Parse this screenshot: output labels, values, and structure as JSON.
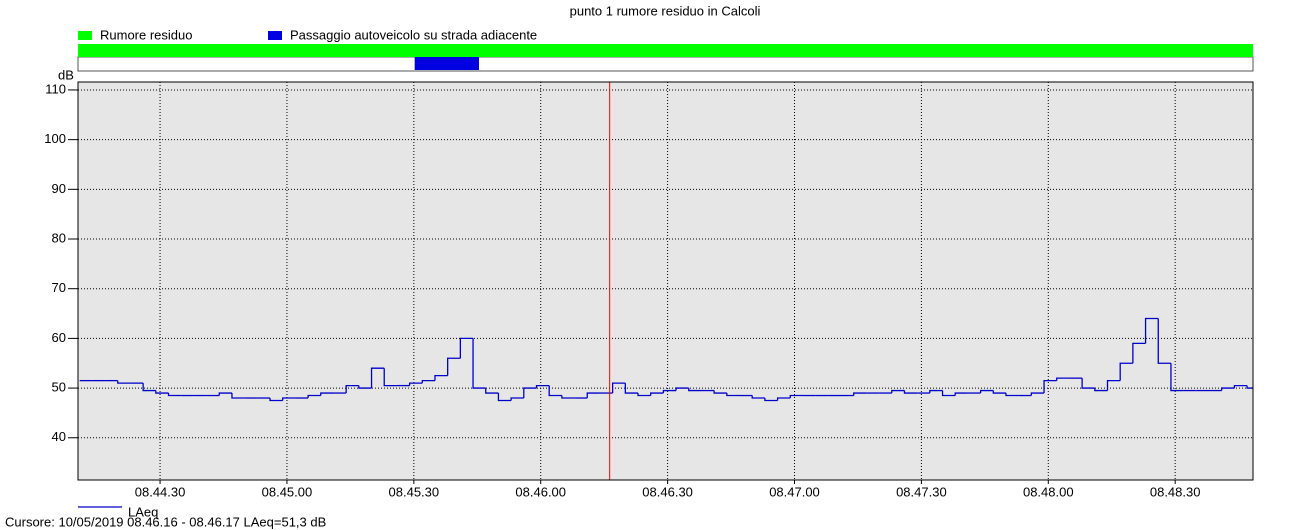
{
  "chart_data": {
    "type": "line",
    "title": "punto 1 rumore residuo in Calcoli",
    "y_label": "dB",
    "events": [
      {
        "name": "Rumore residuo",
        "color": "#00ff00",
        "start": 31450.6,
        "end": 31728.4
      },
      {
        "name": "Passaggio autoveicolo su strada adiacente",
        "color": "#0000e0",
        "start": 31530.2,
        "end": 31545.4
      }
    ],
    "x": [
      31451,
      31454,
      31457,
      31460,
      31463,
      31466,
      31469,
      31472,
      31475,
      31478,
      31481,
      31484,
      31487,
      31490,
      31493,
      31496,
      31499,
      31502,
      31505,
      31508,
      31511,
      31514,
      31517,
      31520,
      31523,
      31526,
      31529,
      31532,
      31535,
      31538,
      31541,
      31544,
      31547,
      31550,
      31553,
      31556,
      31559,
      31562,
      31565,
      31568,
      31571,
      31574,
      31577,
      31580,
      31583,
      31586,
      31589,
      31592,
      31595,
      31598,
      31601,
      31604,
      31607,
      31610,
      31613,
      31616,
      31619,
      31622,
      31625,
      31628,
      31631,
      31634,
      31637,
      31640,
      31643,
      31646,
      31649,
      31652,
      31655,
      31658,
      31661,
      31664,
      31667,
      31670,
      31673,
      31676,
      31679,
      31682,
      31685,
      31688,
      31691,
      31694,
      31697,
      31700,
      31703,
      31706,
      31709,
      31712,
      31715,
      31718,
      31721,
      31724,
      31727
    ],
    "series": [
      {
        "name": "LAeq",
        "color": "#0000cc",
        "values": [
          51.5,
          51.5,
          51.5,
          51,
          51,
          49.5,
          49,
          48.5,
          48.5,
          48.5,
          48.5,
          49,
          48,
          48,
          48,
          47.5,
          48,
          48,
          48.5,
          49,
          49,
          50.5,
          50,
          54,
          50.5,
          50.5,
          51,
          51.5,
          52.5,
          56,
          60,
          50,
          49,
          47.5,
          48,
          50,
          50.5,
          48.5,
          48,
          48,
          49,
          49,
          51,
          49,
          48.5,
          49,
          49.5,
          50,
          49.5,
          49.5,
          49,
          48.5,
          48.5,
          48,
          47.5,
          48,
          48.5,
          48.5,
          48.5,
          48.5,
          48.5,
          49,
          49,
          49,
          49.5,
          49,
          49,
          49.5,
          48.5,
          49,
          49,
          49.5,
          49,
          48.5,
          48.5,
          49,
          51.5,
          52,
          52,
          50,
          49.5,
          51.5,
          55,
          59,
          64,
          55,
          49.5,
          49.5,
          49.5,
          49.5,
          50,
          50.5,
          50
        ]
      }
    ],
    "xlim": [
      31450.6,
      31728.4
    ],
    "xticks": [
      {
        "value": 31470,
        "label": "08.44.30"
      },
      {
        "value": 31500,
        "label": "08.45.00"
      },
      {
        "value": 31530,
        "label": "08.45.30"
      },
      {
        "value": 31560,
        "label": "08.46.00"
      },
      {
        "value": 31590,
        "label": "08.46.30"
      },
      {
        "value": 31620,
        "label": "08.47.00"
      },
      {
        "value": 31650,
        "label": "08.47.30"
      },
      {
        "value": 31680,
        "label": "08.48.00"
      },
      {
        "value": 31710,
        "label": "08.48.30"
      }
    ],
    "ylim": [
      31.5,
      111.6
    ],
    "yticks": [
      40,
      50,
      60,
      70,
      80,
      90,
      100,
      110
    ],
    "grid": true,
    "cursor": {
      "x": 31576.3,
      "color": "#ff0000"
    },
    "cursor_label": "Cursore: 10/05/2019 08.46.16 - 08.46.17  LAeq=51,3 dB"
  }
}
